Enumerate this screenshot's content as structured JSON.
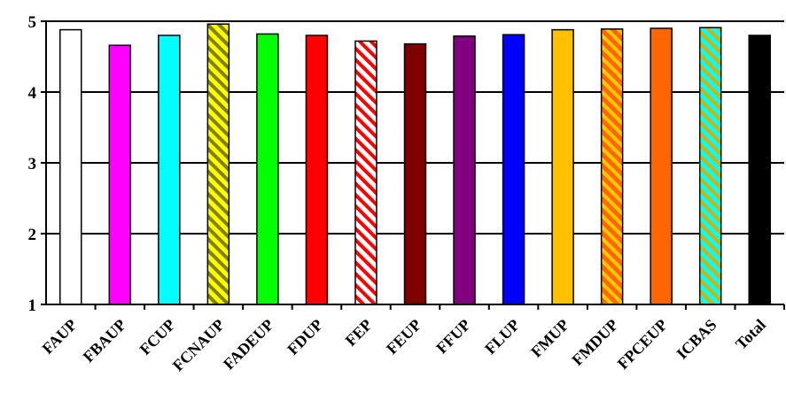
{
  "chart_data": {
    "type": "bar",
    "title": "",
    "xlabel": "",
    "ylabel": "",
    "ylim": [
      1,
      5
    ],
    "yticks": [
      1,
      2,
      3,
      4,
      5
    ],
    "grid": true,
    "categories": [
      "FAUP",
      "FBAUP",
      "FCUP",
      "FCNAUP",
      "FADEUP",
      "FDUP",
      "FEP",
      "FEUP",
      "FFUP",
      "FLUP",
      "FMUP",
      "FMDUP",
      "FPCEUP",
      "ICBAS",
      "Total"
    ],
    "values": [
      4.88,
      4.66,
      4.8,
      4.96,
      4.82,
      4.8,
      4.72,
      4.68,
      4.79,
      4.81,
      4.88,
      4.89,
      4.9,
      4.91,
      4.8
    ],
    "bar_styles": [
      {
        "fill": "#ffffff"
      },
      {
        "fill": "#ff00ff"
      },
      {
        "fill": "#00ffff"
      },
      {
        "fill": "#ffff00",
        "stripe": "#808000"
      },
      {
        "fill": "#00ff00"
      },
      {
        "fill": "#ff0000"
      },
      {
        "fill": "#ffffff",
        "stripe": "#ff0000"
      },
      {
        "fill": "#800000"
      },
      {
        "fill": "#800080"
      },
      {
        "fill": "#0000ff"
      },
      {
        "fill": "#ffc000"
      },
      {
        "fill": "#ff6600",
        "stripe": "#ffcc00"
      },
      {
        "fill": "#ff6600"
      },
      {
        "fill": "#00ffff",
        "stripe": "#d8b000"
      },
      {
        "fill": "#000000"
      }
    ]
  }
}
